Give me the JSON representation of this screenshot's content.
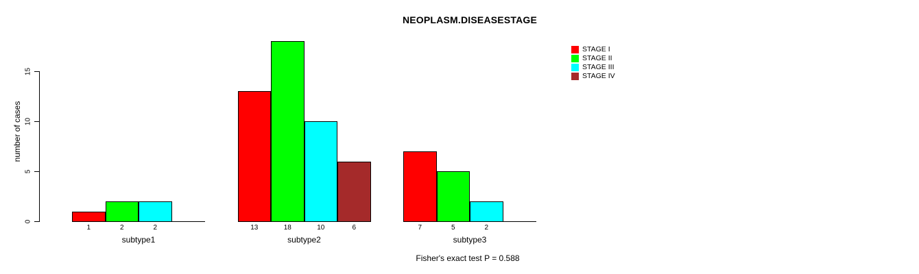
{
  "chart_data": {
    "type": "bar",
    "title": "NEOPLASM.DISEASESTAGE",
    "ylabel": "number of cases",
    "xlabel": "",
    "footnote": "Fisher's exact test P = 0.588",
    "ylim": [
      0,
      15
    ],
    "yticks": [
      0,
      5,
      10,
      15
    ],
    "grid": false,
    "legend_position": "top-right",
    "bar_value_labels_shown": true,
    "categories": [
      "subtype1",
      "subtype2",
      "subtype3"
    ],
    "series": [
      {
        "name": "STAGE I",
        "color": "#ff0000",
        "values": [
          1,
          13,
          7
        ]
      },
      {
        "name": "STAGE II",
        "color": "#00ff00",
        "values": [
          2,
          18,
          5
        ]
      },
      {
        "name": "STAGE III",
        "color": "#00ffff",
        "values": [
          2,
          10,
          2
        ]
      },
      {
        "name": "STAGE IV",
        "color": "#a52a2a",
        "values": [
          null,
          6,
          null
        ]
      }
    ],
    "colors": {
      "axis": "#000000",
      "text": "#000000",
      "background": "#ffffff"
    }
  }
}
